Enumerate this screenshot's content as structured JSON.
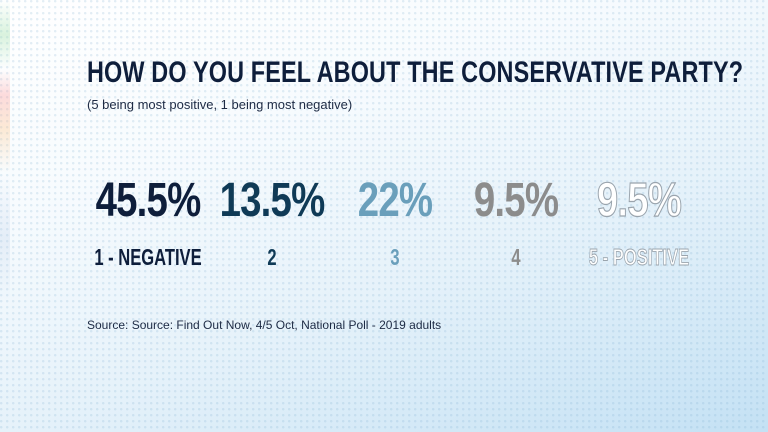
{
  "chart_data": {
    "type": "table",
    "title": "HOW DO YOU FEEL ABOUT THE CONSERVATIVE PARTY?",
    "subtitle": "(5 being most positive, 1 being most negative)",
    "categories": [
      "1 - NEGATIVE",
      "2",
      "3",
      "4",
      "5 - POSITIVE"
    ],
    "values": [
      45.5,
      13.5,
      22,
      9.5,
      9.5
    ],
    "value_labels": [
      "45.5%",
      "13.5%",
      "22%",
      "9.5%",
      "9.5%"
    ],
    "colors": [
      "#0e1e3b",
      "#0f3a56",
      "#6a9fbb",
      "#8c8c8c",
      "#ffffff"
    ],
    "source": "Source: Source: Find Out Now, 4/5 Oct, National Poll - 2019 adults"
  }
}
